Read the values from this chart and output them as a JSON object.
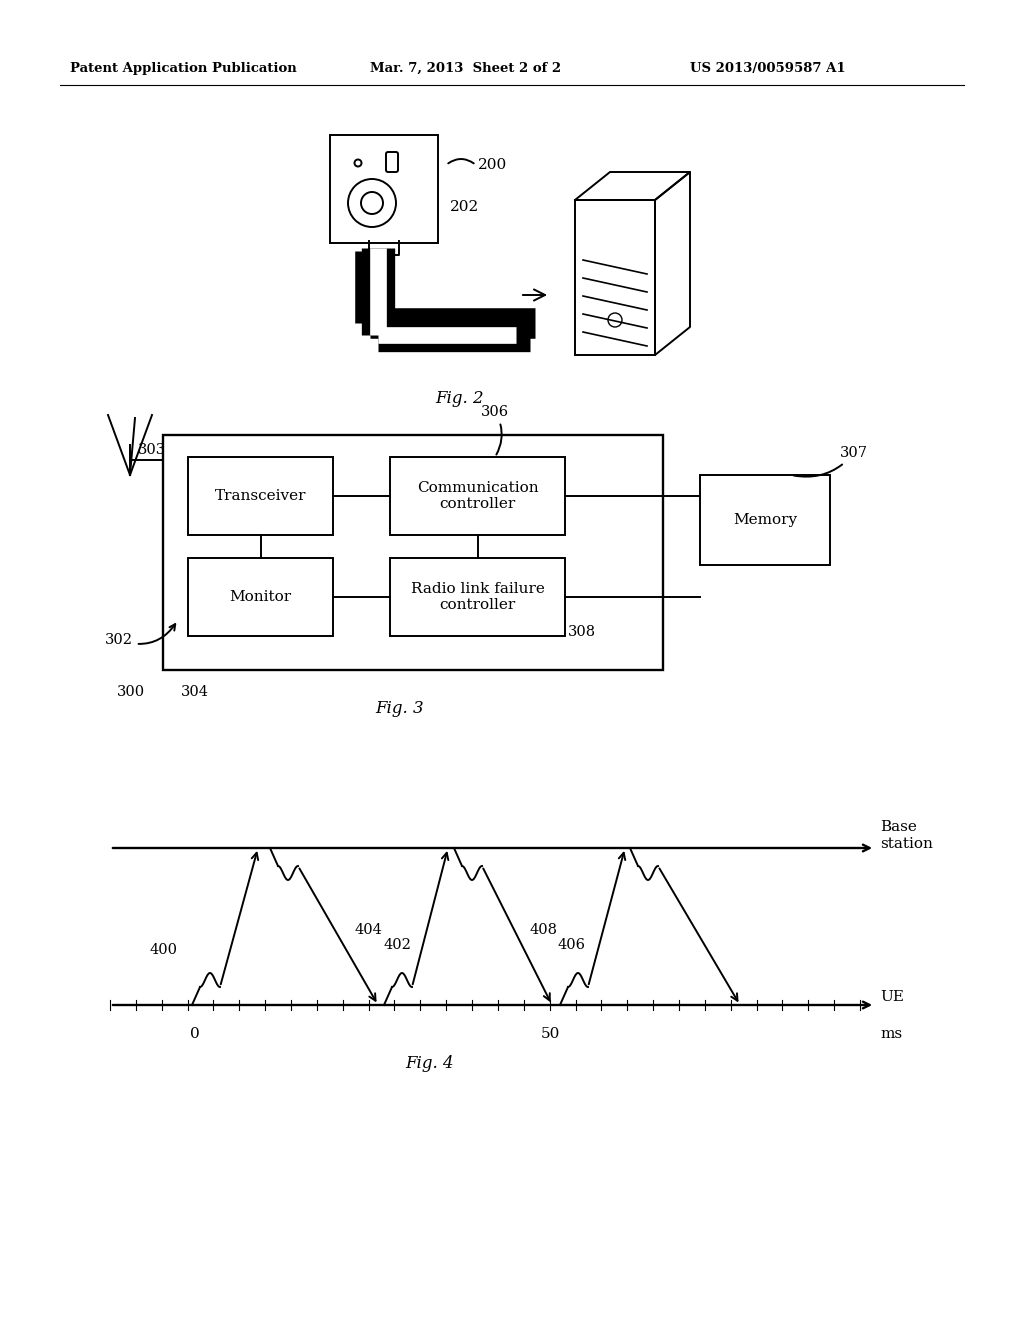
{
  "bg_color": "#ffffff",
  "header_left": "Patent Application Publication",
  "header_mid": "Mar. 7, 2013  Sheet 2 of 2",
  "header_right": "US 2013/0059587 A1",
  "fig2_label": "Fig. 2",
  "fig3_label": "Fig. 3",
  "fig4_label": "Fig. 4",
  "fig2_ref200": "200",
  "fig2_ref202": "202",
  "fig3_ref300": "300",
  "fig3_ref302": "302",
  "fig3_ref303": "303",
  "fig3_ref304": "304",
  "fig3_ref306": "306",
  "fig3_ref307": "307",
  "fig3_ref308": "308",
  "fig3_transceiver": "Transceiver",
  "fig3_comm_ctrl": "Communication\ncontroller",
  "fig3_monitor": "Monitor",
  "fig3_rlf": "Radio link failure\ncontroller",
  "fig3_memory": "Memory",
  "fig4_ref400": "400",
  "fig4_ref402": "402",
  "fig4_ref404": "404",
  "fig4_ref406": "406",
  "fig4_ref408": "408",
  "fig4_bs_label": "Base\nstation",
  "fig4_ue_label": "UE",
  "fig4_x0": "0",
  "fig4_x50": "50",
  "fig4_ms": "ms",
  "lw": 1.4
}
